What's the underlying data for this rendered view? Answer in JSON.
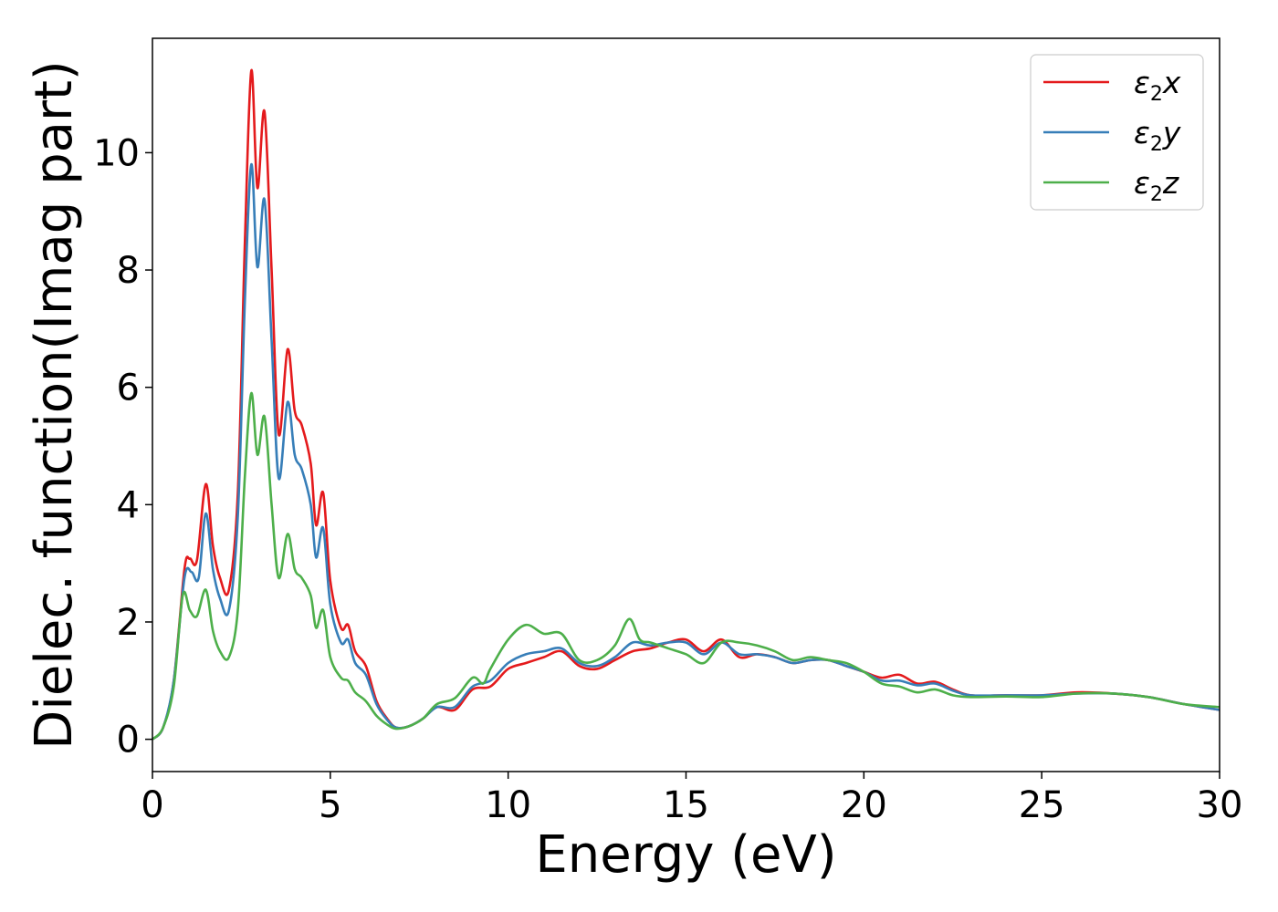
{
  "chart_data": {
    "type": "line",
    "xlabel": "Energy (eV)",
    "ylabel": "Dielec. function(Imag part)",
    "xlim": [
      0,
      30
    ],
    "ylim": [
      -0.55,
      11.95
    ],
    "xticks": [
      0,
      5,
      10,
      15,
      20,
      25,
      30
    ],
    "yticks": [
      0,
      2,
      4,
      6,
      8,
      10
    ],
    "grid": false,
    "legend_position": "top-right",
    "series": [
      {
        "name": "ε2x",
        "label_main": "ε",
        "label_sub": "2",
        "label_tail": "x",
        "color": "#e41a1c",
        "points": [
          [
            0,
            0
          ],
          [
            0.3,
            0.2
          ],
          [
            0.6,
            1.0
          ],
          [
            0.9,
            2.9
          ],
          [
            1.05,
            3.08
          ],
          [
            1.25,
            3.05
          ],
          [
            1.5,
            4.35
          ],
          [
            1.7,
            3.3
          ],
          [
            1.9,
            2.75
          ],
          [
            2.15,
            2.55
          ],
          [
            2.4,
            4.2
          ],
          [
            2.6,
            8.5
          ],
          [
            2.78,
            11.4
          ],
          [
            2.95,
            9.4
          ],
          [
            3.15,
            10.7
          ],
          [
            3.35,
            8.0
          ],
          [
            3.55,
            5.2
          ],
          [
            3.8,
            6.65
          ],
          [
            4.0,
            5.6
          ],
          [
            4.2,
            5.35
          ],
          [
            4.45,
            4.7
          ],
          [
            4.6,
            3.65
          ],
          [
            4.8,
            4.2
          ],
          [
            5.0,
            2.7
          ],
          [
            5.3,
            1.9
          ],
          [
            5.5,
            1.95
          ],
          [
            5.7,
            1.5
          ],
          [
            6.0,
            1.25
          ],
          [
            6.3,
            0.65
          ],
          [
            6.6,
            0.35
          ],
          [
            6.85,
            0.2
          ],
          [
            7.2,
            0.22
          ],
          [
            7.6,
            0.35
          ],
          [
            8.0,
            0.55
          ],
          [
            8.5,
            0.5
          ],
          [
            9.0,
            0.85
          ],
          [
            9.5,
            0.9
          ],
          [
            10.0,
            1.2
          ],
          [
            10.5,
            1.3
          ],
          [
            11.0,
            1.4
          ],
          [
            11.5,
            1.5
          ],
          [
            12.0,
            1.25
          ],
          [
            12.5,
            1.2
          ],
          [
            13.0,
            1.35
          ],
          [
            13.5,
            1.5
          ],
          [
            14.0,
            1.55
          ],
          [
            14.5,
            1.65
          ],
          [
            15.0,
            1.7
          ],
          [
            15.5,
            1.5
          ],
          [
            16.0,
            1.7
          ],
          [
            16.5,
            1.4
          ],
          [
            17.0,
            1.45
          ],
          [
            17.5,
            1.4
          ],
          [
            18.0,
            1.3
          ],
          [
            18.5,
            1.35
          ],
          [
            19.0,
            1.35
          ],
          [
            19.5,
            1.25
          ],
          [
            20.0,
            1.15
          ],
          [
            20.5,
            1.05
          ],
          [
            21.0,
            1.1
          ],
          [
            21.5,
            0.95
          ],
          [
            22.0,
            0.98
          ],
          [
            22.5,
            0.85
          ],
          [
            23.0,
            0.75
          ],
          [
            24.0,
            0.75
          ],
          [
            25.0,
            0.75
          ],
          [
            26.0,
            0.8
          ],
          [
            27.0,
            0.78
          ],
          [
            28.0,
            0.72
          ],
          [
            29.0,
            0.6
          ],
          [
            30.0,
            0.5
          ]
        ]
      },
      {
        "name": "ε2y",
        "label_main": "ε",
        "label_sub": "2",
        "label_tail": "y",
        "color": "#377eb8",
        "points": [
          [
            0,
            0
          ],
          [
            0.3,
            0.2
          ],
          [
            0.6,
            1.0
          ],
          [
            0.9,
            2.75
          ],
          [
            1.1,
            2.85
          ],
          [
            1.3,
            2.75
          ],
          [
            1.5,
            3.85
          ],
          [
            1.7,
            2.9
          ],
          [
            1.9,
            2.4
          ],
          [
            2.15,
            2.2
          ],
          [
            2.4,
            3.8
          ],
          [
            2.6,
            7.5
          ],
          [
            2.78,
            9.8
          ],
          [
            2.95,
            8.05
          ],
          [
            3.15,
            9.2
          ],
          [
            3.35,
            6.8
          ],
          [
            3.55,
            4.45
          ],
          [
            3.8,
            5.75
          ],
          [
            4.0,
            4.85
          ],
          [
            4.2,
            4.6
          ],
          [
            4.45,
            4.0
          ],
          [
            4.6,
            3.1
          ],
          [
            4.8,
            3.6
          ],
          [
            5.0,
            2.3
          ],
          [
            5.3,
            1.65
          ],
          [
            5.5,
            1.7
          ],
          [
            5.7,
            1.3
          ],
          [
            6.0,
            1.1
          ],
          [
            6.3,
            0.6
          ],
          [
            6.6,
            0.33
          ],
          [
            6.85,
            0.2
          ],
          [
            7.2,
            0.22
          ],
          [
            7.6,
            0.35
          ],
          [
            8.0,
            0.55
          ],
          [
            8.5,
            0.55
          ],
          [
            9.0,
            0.9
          ],
          [
            9.5,
            1.0
          ],
          [
            10.0,
            1.3
          ],
          [
            10.5,
            1.45
          ],
          [
            11.0,
            1.5
          ],
          [
            11.5,
            1.55
          ],
          [
            12.0,
            1.3
          ],
          [
            12.5,
            1.25
          ],
          [
            13.0,
            1.4
          ],
          [
            13.5,
            1.65
          ],
          [
            14.0,
            1.6
          ],
          [
            14.5,
            1.65
          ],
          [
            15.0,
            1.65
          ],
          [
            15.5,
            1.45
          ],
          [
            16.0,
            1.65
          ],
          [
            16.5,
            1.45
          ],
          [
            17.0,
            1.45
          ],
          [
            17.5,
            1.4
          ],
          [
            18.0,
            1.3
          ],
          [
            18.5,
            1.35
          ],
          [
            19.0,
            1.35
          ],
          [
            19.5,
            1.25
          ],
          [
            20.0,
            1.15
          ],
          [
            20.5,
            1.0
          ],
          [
            21.0,
            1.0
          ],
          [
            21.5,
            0.92
          ],
          [
            22.0,
            0.95
          ],
          [
            22.5,
            0.83
          ],
          [
            23.0,
            0.75
          ],
          [
            24.0,
            0.75
          ],
          [
            25.0,
            0.75
          ],
          [
            26.0,
            0.78
          ],
          [
            27.0,
            0.78
          ],
          [
            28.0,
            0.72
          ],
          [
            29.0,
            0.6
          ],
          [
            30.0,
            0.5
          ]
        ]
      },
      {
        "name": "ε2z",
        "label_main": "ε",
        "label_sub": "2",
        "label_tail": "z",
        "color": "#4daf4a",
        "points": [
          [
            0,
            0
          ],
          [
            0.3,
            0.2
          ],
          [
            0.6,
            0.9
          ],
          [
            0.85,
            2.45
          ],
          [
            1.05,
            2.2
          ],
          [
            1.25,
            2.1
          ],
          [
            1.5,
            2.55
          ],
          [
            1.7,
            1.85
          ],
          [
            1.9,
            1.5
          ],
          [
            2.15,
            1.4
          ],
          [
            2.4,
            2.2
          ],
          [
            2.6,
            4.5
          ],
          [
            2.78,
            5.9
          ],
          [
            2.95,
            4.85
          ],
          [
            3.15,
            5.5
          ],
          [
            3.35,
            4.0
          ],
          [
            3.55,
            2.75
          ],
          [
            3.8,
            3.5
          ],
          [
            4.0,
            2.9
          ],
          [
            4.2,
            2.75
          ],
          [
            4.45,
            2.45
          ],
          [
            4.6,
            1.9
          ],
          [
            4.8,
            2.2
          ],
          [
            5.0,
            1.4
          ],
          [
            5.3,
            1.05
          ],
          [
            5.5,
            1.0
          ],
          [
            5.7,
            0.8
          ],
          [
            6.0,
            0.65
          ],
          [
            6.3,
            0.4
          ],
          [
            6.6,
            0.25
          ],
          [
            6.85,
            0.18
          ],
          [
            7.2,
            0.22
          ],
          [
            7.6,
            0.35
          ],
          [
            8.0,
            0.6
          ],
          [
            8.5,
            0.7
          ],
          [
            9.0,
            1.05
          ],
          [
            9.3,
            0.95
          ],
          [
            9.5,
            1.2
          ],
          [
            10.0,
            1.7
          ],
          [
            10.5,
            1.95
          ],
          [
            11.0,
            1.8
          ],
          [
            11.5,
            1.8
          ],
          [
            12.0,
            1.35
          ],
          [
            12.5,
            1.35
          ],
          [
            13.0,
            1.6
          ],
          [
            13.4,
            2.05
          ],
          [
            13.7,
            1.7
          ],
          [
            14.0,
            1.65
          ],
          [
            14.5,
            1.55
          ],
          [
            15.0,
            1.45
          ],
          [
            15.5,
            1.3
          ],
          [
            16.0,
            1.65
          ],
          [
            16.5,
            1.65
          ],
          [
            17.0,
            1.6
          ],
          [
            17.5,
            1.5
          ],
          [
            18.0,
            1.35
          ],
          [
            18.5,
            1.4
          ],
          [
            19.0,
            1.35
          ],
          [
            19.5,
            1.3
          ],
          [
            20.0,
            1.15
          ],
          [
            20.5,
            0.95
          ],
          [
            21.0,
            0.9
          ],
          [
            21.5,
            0.8
          ],
          [
            22.0,
            0.85
          ],
          [
            22.5,
            0.75
          ],
          [
            23.0,
            0.72
          ],
          [
            24.0,
            0.73
          ],
          [
            25.0,
            0.72
          ],
          [
            26.0,
            0.78
          ],
          [
            27.0,
            0.78
          ],
          [
            28.0,
            0.72
          ],
          [
            29.0,
            0.6
          ],
          [
            30.0,
            0.55
          ]
        ]
      }
    ]
  }
}
